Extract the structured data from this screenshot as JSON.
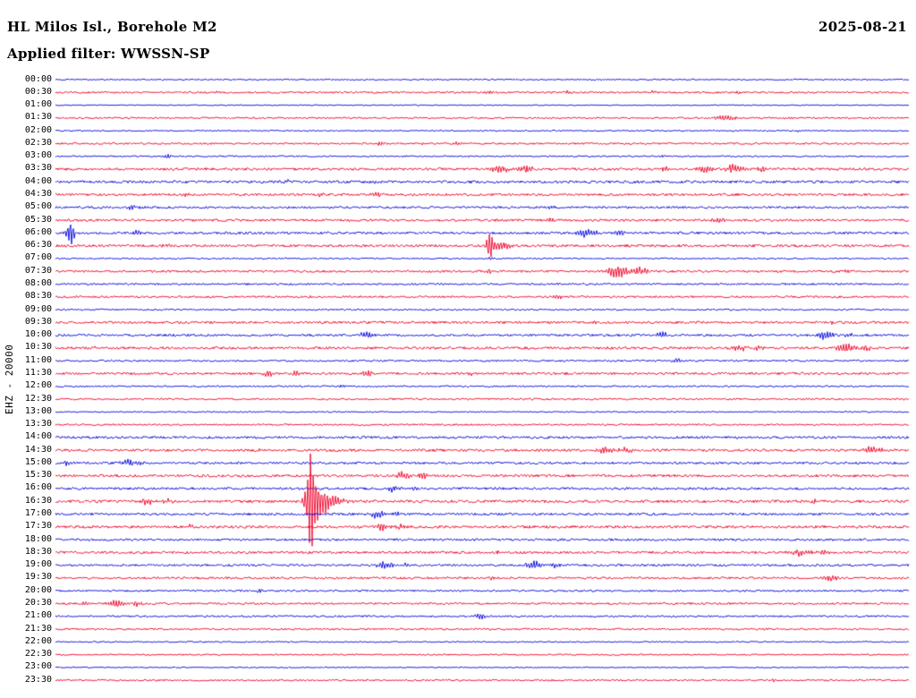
{
  "header": {
    "station_title": "HL Milos Isl., Borehole M2",
    "date": "2025-08-21",
    "filter_line": "Applied filter: WWSSN-SP"
  },
  "y_axis_label": "EHZ - 20000",
  "chart_data": {
    "type": "line",
    "subtype": "helicorder-seismogram",
    "title": "HL Milos Isl., Borehole M2",
    "date": "2025-08-21",
    "applied_filter": "WWSSN-SP",
    "channel_scale_label": "EHZ - 20000",
    "minutes_per_row": 30,
    "rows_count": 48,
    "colors": {
      "red": "#ee0028",
      "blue": "#0000dd"
    },
    "event_format": "[x_fraction_of_row, amplitude_px, envelope_width_px]",
    "rows": [
      {
        "t": "00:00",
        "c": "b",
        "n": 0.7,
        "e": []
      },
      {
        "t": "00:30",
        "c": "r",
        "n": 1.0,
        "e": [
          [
            0.19,
            1.5,
            2.5
          ],
          [
            0.51,
            2,
            3
          ],
          [
            0.6,
            1.5,
            2.5
          ],
          [
            0.7,
            1.5,
            2.5
          ],
          [
            0.8,
            1.5,
            2.5
          ]
        ]
      },
      {
        "t": "01:00",
        "c": "b",
        "n": 0.6,
        "e": []
      },
      {
        "t": "01:30",
        "c": "r",
        "n": 0.9,
        "e": [
          [
            0.785,
            4,
            8
          ],
          [
            0.86,
            2,
            4
          ]
        ]
      },
      {
        "t": "02:00",
        "c": "b",
        "n": 0.7,
        "e": [
          [
            0.87,
            1.5,
            2.5
          ]
        ]
      },
      {
        "t": "02:30",
        "c": "r",
        "n": 1.0,
        "e": [
          [
            0.33,
            2,
            3
          ],
          [
            0.38,
            2,
            3
          ],
          [
            0.43,
            2,
            3
          ],
          [
            0.47,
            2.5,
            3
          ]
        ]
      },
      {
        "t": "03:00",
        "c": "b",
        "n": 0.8,
        "e": [
          [
            0.129,
            3,
            4
          ],
          [
            0.48,
            1.5,
            3
          ],
          [
            0.71,
            1.5,
            3
          ]
        ]
      },
      {
        "t": "03:30",
        "c": "r",
        "n": 1.4,
        "e": [
          [
            0.52,
            4,
            10
          ],
          [
            0.55,
            5,
            6
          ],
          [
            0.716,
            3,
            4
          ],
          [
            0.76,
            5,
            6
          ],
          [
            0.795,
            5,
            8
          ],
          [
            0.83,
            4,
            5
          ]
        ]
      },
      {
        "t": "04:00",
        "c": "b",
        "n": 1.4,
        "e": [
          [
            0.27,
            2,
            4
          ],
          [
            0.37,
            2.5,
            4
          ],
          [
            0.8,
            2,
            4
          ]
        ]
      },
      {
        "t": "04:30",
        "c": "r",
        "n": 1.3,
        "e": [
          [
            0.155,
            2,
            3
          ],
          [
            0.31,
            2,
            3
          ],
          [
            0.375,
            3.5,
            5
          ]
        ]
      },
      {
        "t": "05:00",
        "c": "b",
        "n": 1.2,
        "e": [
          [
            0.09,
            3,
            4
          ],
          [
            0.58,
            2,
            3
          ]
        ]
      },
      {
        "t": "05:30",
        "c": "r",
        "n": 1.3,
        "e": [
          [
            0.3,
            2,
            3
          ],
          [
            0.58,
            2,
            3
          ],
          [
            0.779,
            4,
            6
          ]
        ]
      },
      {
        "t": "06:00",
        "c": "b",
        "n": 1.3,
        "e": [
          [
            0.018,
            14,
            3.5
          ],
          [
            0.095,
            4,
            4
          ],
          [
            0.622,
            6,
            7
          ],
          [
            0.66,
            3,
            5
          ]
        ]
      },
      {
        "t": "06:30",
        "c": "r",
        "n": 1.4,
        "e": [
          [
            0.13,
            2.5,
            3
          ],
          [
            0.509,
            20,
            2.2
          ],
          [
            0.52,
            5,
            8
          ]
        ]
      },
      {
        "t": "07:00",
        "c": "b",
        "n": 0.8,
        "e": [
          [
            0.51,
            2,
            2
          ]
        ]
      },
      {
        "t": "07:30",
        "c": "r",
        "n": 1.2,
        "e": [
          [
            0.507,
            2.5,
            3
          ],
          [
            0.659,
            8,
            9
          ],
          [
            0.685,
            5,
            6
          ],
          [
            0.93,
            2,
            3
          ]
        ]
      },
      {
        "t": "08:00",
        "c": "b",
        "n": 1.0,
        "e": [
          [
            0.59,
            2,
            3
          ]
        ]
      },
      {
        "t": "08:30",
        "c": "r",
        "n": 1.1,
        "e": [
          [
            0.3,
            1.5,
            2.5
          ],
          [
            0.59,
            3,
            4
          ]
        ]
      },
      {
        "t": "09:00",
        "c": "b",
        "n": 0.9,
        "e": []
      },
      {
        "t": "09:30",
        "c": "r",
        "n": 1.3,
        "e": [
          [
            0.63,
            2,
            3
          ],
          [
            0.91,
            2,
            3
          ]
        ]
      },
      {
        "t": "10:00",
        "c": "b",
        "n": 1.3,
        "e": [
          [
            0.366,
            4.5,
            6
          ],
          [
            0.711,
            4,
            5
          ],
          [
            0.9,
            5,
            7
          ],
          [
            0.93,
            3,
            4
          ]
        ]
      },
      {
        "t": "10:30",
        "c": "r",
        "n": 1.4,
        "e": [
          [
            0.042,
            2,
            3
          ],
          [
            0.8,
            4.5,
            6
          ],
          [
            0.825,
            3,
            4
          ],
          [
            0.925,
            6,
            7
          ],
          [
            0.95,
            3,
            4
          ]
        ]
      },
      {
        "t": "11:00",
        "c": "b",
        "n": 1.0,
        "e": [
          [
            0.727,
            3,
            4
          ]
        ]
      },
      {
        "t": "11:30",
        "c": "r",
        "n": 1.3,
        "e": [
          [
            0.251,
            4.5,
            4
          ],
          [
            0.282,
            3,
            3
          ],
          [
            0.366,
            3.5,
            4
          ],
          [
            0.486,
            2.5,
            3
          ]
        ]
      },
      {
        "t": "12:00",
        "c": "b",
        "n": 0.9,
        "e": [
          [
            0.335,
            2,
            3
          ]
        ]
      },
      {
        "t": "12:30",
        "c": "r",
        "n": 1.0,
        "e": []
      },
      {
        "t": "13:00",
        "c": "b",
        "n": 0.7,
        "e": []
      },
      {
        "t": "13:30",
        "c": "r",
        "n": 0.9,
        "e": [
          [
            0.863,
            1.5,
            2
          ]
        ]
      },
      {
        "t": "14:00",
        "c": "b",
        "n": 1.3,
        "e": [
          [
            0.24,
            1.5,
            2.5
          ]
        ]
      },
      {
        "t": "14:30",
        "c": "r",
        "n": 1.4,
        "e": [
          [
            0.24,
            2,
            3
          ],
          [
            0.643,
            4,
            8
          ],
          [
            0.67,
            3,
            5
          ],
          [
            0.957,
            4.5,
            8
          ]
        ]
      },
      {
        "t": "15:00",
        "c": "b",
        "n": 1.3,
        "e": [
          [
            0.013,
            3,
            3
          ],
          [
            0.085,
            4.5,
            5
          ],
          [
            0.1,
            3,
            3
          ]
        ]
      },
      {
        "t": "15:30",
        "c": "r",
        "n": 1.4,
        "e": [
          [
            0.408,
            5,
            6
          ],
          [
            0.43,
            3,
            4
          ]
        ]
      },
      {
        "t": "16:00",
        "c": "b",
        "n": 1.3,
        "e": [
          [
            0.397,
            4,
            5
          ],
          [
            0.42,
            2.5,
            3
          ]
        ]
      },
      {
        "t": "16:30",
        "c": "r",
        "n": 1.5,
        "e": [
          [
            0.108,
            4,
            6
          ],
          [
            0.132,
            3,
            4
          ],
          [
            0.299,
            55,
            2.8
          ],
          [
            0.305,
            18,
            7
          ],
          [
            0.315,
            8,
            14
          ],
          [
            0.89,
            2.5,
            3
          ]
        ]
      },
      {
        "t": "17:00",
        "c": "b",
        "n": 1.3,
        "e": [
          [
            0.377,
            4.5,
            6
          ],
          [
            0.4,
            2.5,
            3
          ]
        ]
      },
      {
        "t": "17:30",
        "c": "r",
        "n": 1.4,
        "e": [
          [
            0.157,
            2.5,
            3
          ],
          [
            0.381,
            5,
            6
          ],
          [
            0.405,
            3,
            4
          ]
        ]
      },
      {
        "t": "18:00",
        "c": "b",
        "n": 1.2,
        "e": [
          [
            0.3,
            2,
            2
          ]
        ]
      },
      {
        "t": "18:30",
        "c": "r",
        "n": 1.3,
        "e": [
          [
            0.518,
            2,
            3
          ],
          [
            0.873,
            4.5,
            7
          ],
          [
            0.9,
            3,
            4
          ]
        ]
      },
      {
        "t": "19:00",
        "c": "b",
        "n": 1.2,
        "e": [
          [
            0.387,
            5,
            7
          ],
          [
            0.41,
            3,
            4
          ],
          [
            0.56,
            5,
            7
          ],
          [
            0.585,
            3,
            4
          ]
        ]
      },
      {
        "t": "19:30",
        "c": "r",
        "n": 1.2,
        "e": [
          [
            0.513,
            2,
            3
          ],
          [
            0.91,
            4,
            5
          ]
        ]
      },
      {
        "t": "20:00",
        "c": "b",
        "n": 1.0,
        "e": [
          [
            0.24,
            2.5,
            3
          ]
        ]
      },
      {
        "t": "20:30",
        "c": "r",
        "n": 1.1,
        "e": [
          [
            0.035,
            2,
            3
          ],
          [
            0.073,
            5,
            6
          ],
          [
            0.095,
            3,
            4
          ]
        ]
      },
      {
        "t": "21:00",
        "c": "b",
        "n": 1.0,
        "e": [
          [
            0.497,
            3.5,
            5
          ]
        ]
      },
      {
        "t": "21:30",
        "c": "r",
        "n": 1.0,
        "e": []
      },
      {
        "t": "22:00",
        "c": "b",
        "n": 0.7,
        "e": []
      },
      {
        "t": "22:30",
        "c": "r",
        "n": 0.8,
        "e": []
      },
      {
        "t": "23:00",
        "c": "b",
        "n": 0.6,
        "e": []
      },
      {
        "t": "23:30",
        "c": "r",
        "n": 0.9,
        "e": [
          [
            0.842,
            2,
            3
          ]
        ]
      }
    ]
  }
}
